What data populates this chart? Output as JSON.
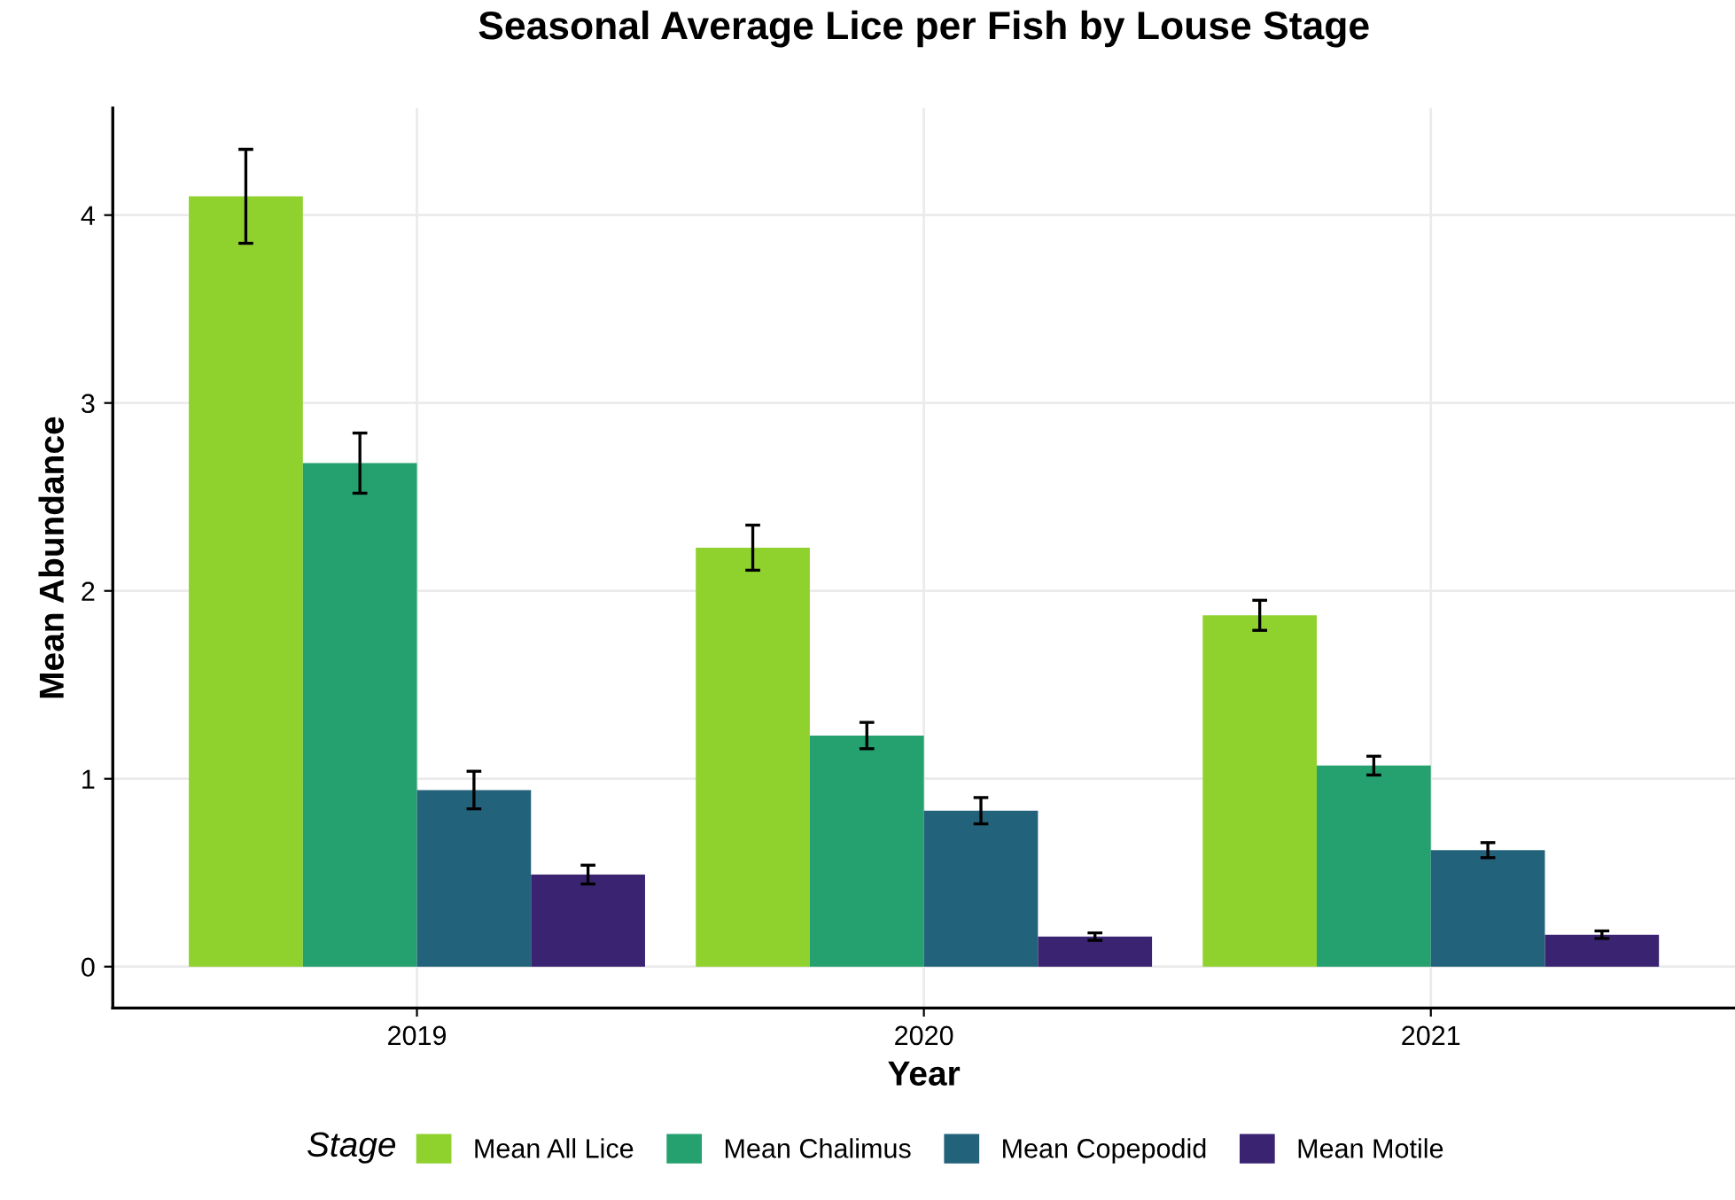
{
  "chart_data": {
    "type": "bar",
    "title": "Seasonal Average Lice per Fish by Louse Stage",
    "xlabel": "Year",
    "ylabel": "Mean Abundance",
    "legend_title": "Stage",
    "categories": [
      "2019",
      "2020",
      "2021"
    ],
    "series": [
      {
        "name": "Mean All Lice",
        "color": "#8fd22e",
        "values": [
          4.1,
          2.23,
          1.87
        ],
        "errors": [
          0.25,
          0.12,
          0.08
        ]
      },
      {
        "name": "Mean Chalimus",
        "color": "#25a06f",
        "values": [
          2.68,
          1.23,
          1.07
        ],
        "errors": [
          0.16,
          0.07,
          0.05
        ]
      },
      {
        "name": "Mean Copepodid",
        "color": "#23627b",
        "values": [
          0.94,
          0.83,
          0.62
        ],
        "errors": [
          0.1,
          0.07,
          0.04
        ]
      },
      {
        "name": "Mean Motile",
        "color": "#3a2472",
        "values": [
          0.49,
          0.16,
          0.17
        ],
        "errors": [
          0.05,
          0.02,
          0.02
        ]
      }
    ],
    "ylim": [
      -0.22,
      4.57
    ],
    "yticks": [
      0,
      1,
      2,
      3,
      4
    ],
    "grid": true,
    "legend": "bottom"
  }
}
